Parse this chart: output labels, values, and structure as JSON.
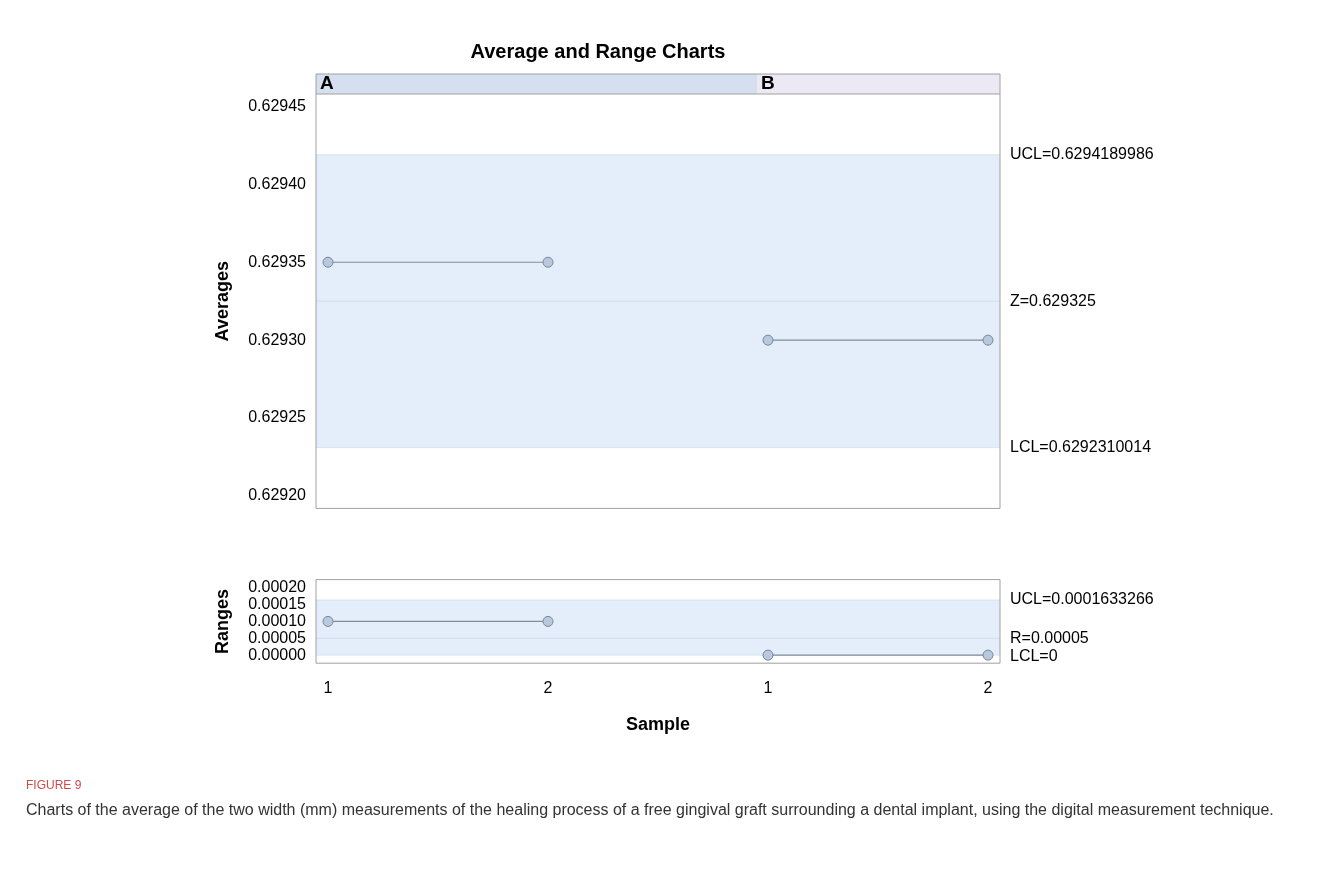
{
  "chart_data": [
    {
      "type": "line",
      "title": "Average and Range Charts",
      "ylabel": "Averages",
      "categories": [
        "1",
        "2",
        "1",
        "2"
      ],
      "series": [
        {
          "color": "#7f8c9c",
          "values": [
            0.62935,
            0.62935,
            null,
            null
          ]
        },
        {
          "color": "#7f8c9c",
          "values": [
            null,
            null,
            0.6293,
            0.6293
          ]
        }
      ],
      "ylim": [
        0.629192,
        0.629458
      ],
      "yticks": [
        {
          "value": 0.6292,
          "label": "0.62920"
        },
        0.62925,
        {
          "value": 0.6293,
          "label": "0.62930"
        },
        0.62935,
        {
          "value": 0.6294,
          "label": "0.62940"
        },
        0.62945
      ],
      "bands": [
        {
          "axis": "y",
          "from": 0.6292310014,
          "to": 0.6294189986,
          "color": "#e4eefa"
        }
      ],
      "ref_lines": [
        {
          "axis": "y",
          "value": 0.6294189986,
          "label": "UCL=0.6294189986",
          "color": "#d8e4f2"
        },
        {
          "axis": "y",
          "value": 0.629325,
          "label": "Z=0.629325",
          "color": "#cfdcec"
        },
        {
          "axis": "y",
          "value": 0.6292310014,
          "label": "LCL=0.6292310014",
          "color": "#d8e4f2"
        }
      ],
      "marker": "circle",
      "grid": false,
      "tick_labels": "y",
      "annotations": [
        "A",
        "B"
      ]
    },
    {
      "type": "line",
      "ylabel": "Ranges",
      "xlabel": "Sample",
      "categories": [
        "1",
        "2",
        "1",
        "2"
      ],
      "series": [
        {
          "color": "#7f8c9c",
          "values": [
            0.0001,
            0.0001,
            null,
            null
          ]
        },
        {
          "color": "#7f8c9c",
          "values": [
            null,
            null,
            0,
            0
          ]
        }
      ],
      "ylim": [
        -2.4e-05,
        0.000224
      ],
      "yticks": [
        {
          "value": 0,
          "label": "0.00000"
        },
        {
          "value": 5e-05,
          "label": "0.00005"
        },
        {
          "value": 0.0001,
          "label": "0.00010"
        },
        {
          "value": 0.00015,
          "label": "0.00015"
        },
        {
          "value": 0.0002,
          "label": "0.00020"
        }
      ],
      "bands": [
        {
          "axis": "y",
          "from": 0,
          "to": 0.0001633266,
          "color": "#e4eefa"
        }
      ],
      "ref_lines": [
        {
          "axis": "y",
          "value": 0.0001633266,
          "label": "UCL=0.0001633266",
          "color": "#d8e4f2"
        },
        {
          "axis": "y",
          "value": 5e-05,
          "label": "R=0.00005",
          "color": "#cfdcec"
        },
        {
          "axis": "y",
          "value": 0,
          "label": "LCL=0",
          "color": "#d8e4f2"
        }
      ],
      "marker": "circle",
      "grid": false,
      "annotations": [
        "FIGURE 9",
        "Charts of the average of the two width (mm) measurements of the healing process of a free gingival graft surrounding a dental implant, using the digital measurement technique."
      ]
    }
  ]
}
